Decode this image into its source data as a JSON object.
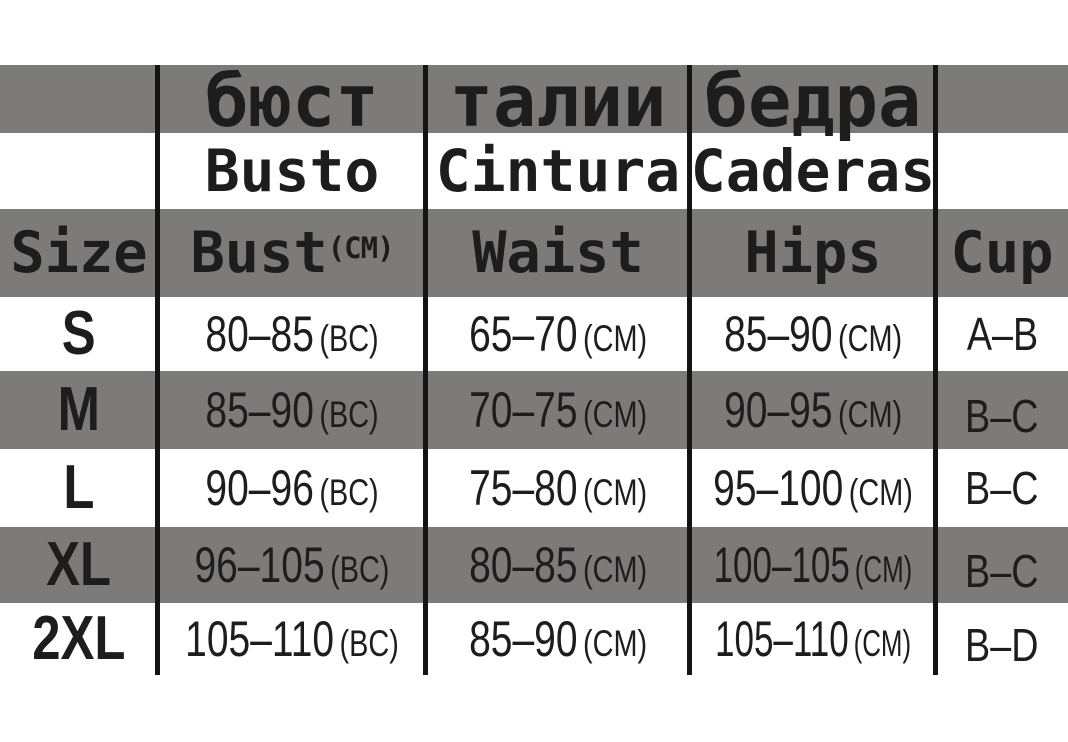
{
  "chart_data": {
    "type": "table",
    "title": "",
    "columns": [
      "Size",
      "Bust (CM)",
      "Waist",
      "Hips",
      "Cup"
    ],
    "header_row_russian": [
      "",
      "бюст",
      "талии",
      "бедра",
      ""
    ],
    "header_row_spanish": [
      "",
      "Busto",
      "Cintura",
      "Caderas",
      ""
    ],
    "rows": [
      [
        "S",
        "80-85 (BC)",
        "65-70 (CM)",
        "85-90 (CM)",
        "A-B"
      ],
      [
        "M",
        "85-90 (BC)",
        "70-75 (CM)",
        "90-95 (CM)",
        "B-C"
      ],
      [
        "L",
        "90-96 (BC)",
        "75-80 (CM)",
        "95-100 (CM)",
        "B-C"
      ],
      [
        "XL",
        "96-105 (BC)",
        "80-85 (CM)",
        "100-105 (CM)",
        "B-C"
      ],
      [
        "2XL",
        "105-110 (BC)",
        "85-90 (CM)",
        "105-110 (CM)",
        "B-D"
      ]
    ],
    "layout_hints": {
      "striped_rows": true,
      "stripe_color": "#7d7a7a",
      "divider_color": "#141414"
    }
  },
  "table": {
    "header_ru": {
      "bust": "бюст",
      "waist": "талии",
      "hips": "бедра"
    },
    "header_es": {
      "bust": "Busto",
      "waist": "Cintura",
      "hips": "Caderas"
    },
    "header_en": {
      "size": "Size",
      "bust": "Bust",
      "bust_unit": "(CM)",
      "waist": "Waist",
      "hips": "Hips",
      "cup": "Cup"
    },
    "rows": [
      {
        "size": "S",
        "bust_range": "80–85",
        "bust_unit": "(BC)",
        "waist_range": "65–70",
        "waist_unit": "(CM)",
        "hips_range": "85–90",
        "hips_unit": "(CM)",
        "cup": "A–B"
      },
      {
        "size": "M",
        "bust_range": "85–90",
        "bust_unit": "(BC)",
        "waist_range": "70–75",
        "waist_unit": "(CM)",
        "hips_range": "90–95",
        "hips_unit": "(CM)",
        "cup": "B–C"
      },
      {
        "size": "L",
        "bust_range": "90–96",
        "bust_unit": "(BC)",
        "waist_range": "75–80",
        "waist_unit": "(CM)",
        "hips_range": "95–100",
        "hips_unit": "(CM)",
        "cup": "B–C"
      },
      {
        "size": "XL",
        "bust_range": "96–105",
        "bust_unit": "(BC)",
        "waist_range": "80–85",
        "waist_unit": "(CM)",
        "hips_range": "100–105",
        "hips_unit": "(CM)",
        "cup": "B–C"
      },
      {
        "size": "2XL",
        "bust_range": "105–110",
        "bust_unit": "(BC)",
        "waist_range": "85–90",
        "waist_unit": "(CM)",
        "hips_range": "105–110",
        "hips_unit": "(CM)",
        "cup": "B–D"
      }
    ],
    "colors": {
      "band_gray": "#7d7a7a",
      "divider_black": "#141414",
      "text": "#1d1d1d"
    }
  }
}
